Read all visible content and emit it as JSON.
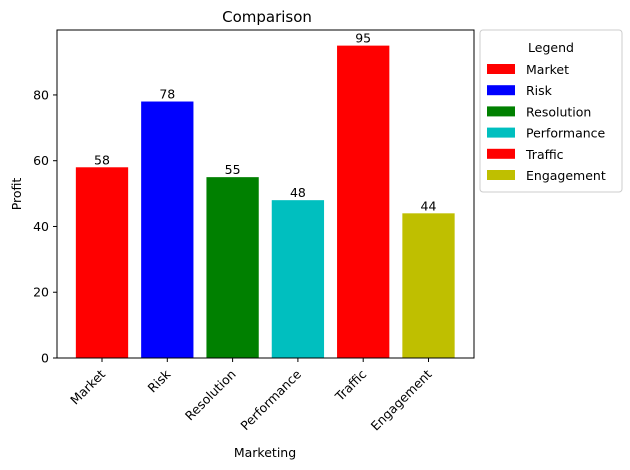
{
  "chart_data": {
    "type": "bar",
    "title": "Comparison",
    "xlabel": "Marketing",
    "ylabel": "Profit",
    "categories": [
      "Market",
      "Risk",
      "Resolution",
      "Performance",
      "Traffic",
      "Engagement"
    ],
    "values": [
      58,
      78,
      55,
      48,
      95,
      44
    ],
    "colors": [
      "#ff0000",
      "#0000ff",
      "#008000",
      "#00bfbf",
      "#ff0000",
      "#bfbf00"
    ],
    "ylim": [
      0,
      99.75
    ],
    "yticks": [
      0,
      20,
      40,
      60,
      80
    ],
    "grid": false,
    "legend": {
      "title": "Legend",
      "placement": "outside-top-right",
      "entries": [
        "Market",
        "Risk",
        "Resolution",
        "Performance",
        "Traffic",
        "Engagement"
      ]
    }
  }
}
